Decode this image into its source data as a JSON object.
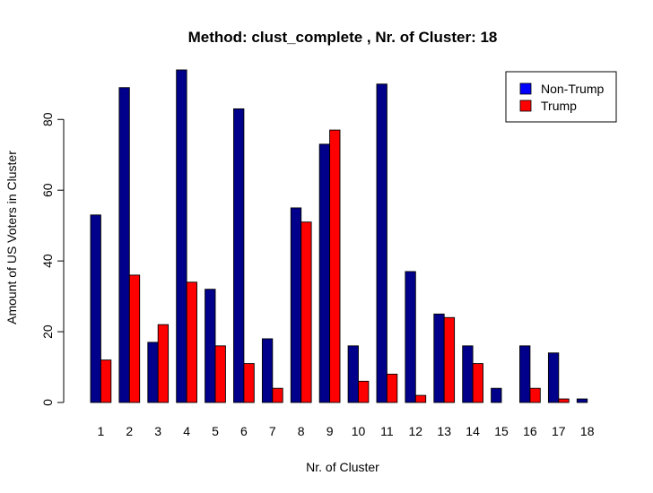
{
  "chart_data": {
    "type": "bar",
    "title": "Method: clust_complete , Nr. of Cluster: 18",
    "xlabel": "Nr. of Cluster",
    "ylabel": "Amount of US Voters in Cluster",
    "categories": [
      "1",
      "2",
      "3",
      "4",
      "5",
      "6",
      "7",
      "8",
      "9",
      "10",
      "11",
      "12",
      "13",
      "14",
      "15",
      "16",
      "17",
      "18"
    ],
    "series": [
      {
        "name": "Non-Trump",
        "color": "#00008B",
        "values": [
          53,
          89,
          17,
          94,
          32,
          83,
          18,
          55,
          73,
          16,
          90,
          37,
          25,
          16,
          4,
          16,
          14,
          1
        ]
      },
      {
        "name": "Trump",
        "color": "#FF0000",
        "values": [
          12,
          36,
          22,
          34,
          16,
          11,
          4,
          51,
          77,
          6,
          8,
          2,
          24,
          11,
          0,
          4,
          1,
          0
        ]
      }
    ],
    "ylim": [
      0,
      94
    ],
    "yticks": [
      0,
      20,
      40,
      60,
      80
    ],
    "legend": {
      "position": "top-right",
      "entries": [
        {
          "label": "Non-Trump",
          "color": "#0000FF"
        },
        {
          "label": "Trump",
          "color": "#FF0000"
        }
      ]
    },
    "grid": false
  }
}
